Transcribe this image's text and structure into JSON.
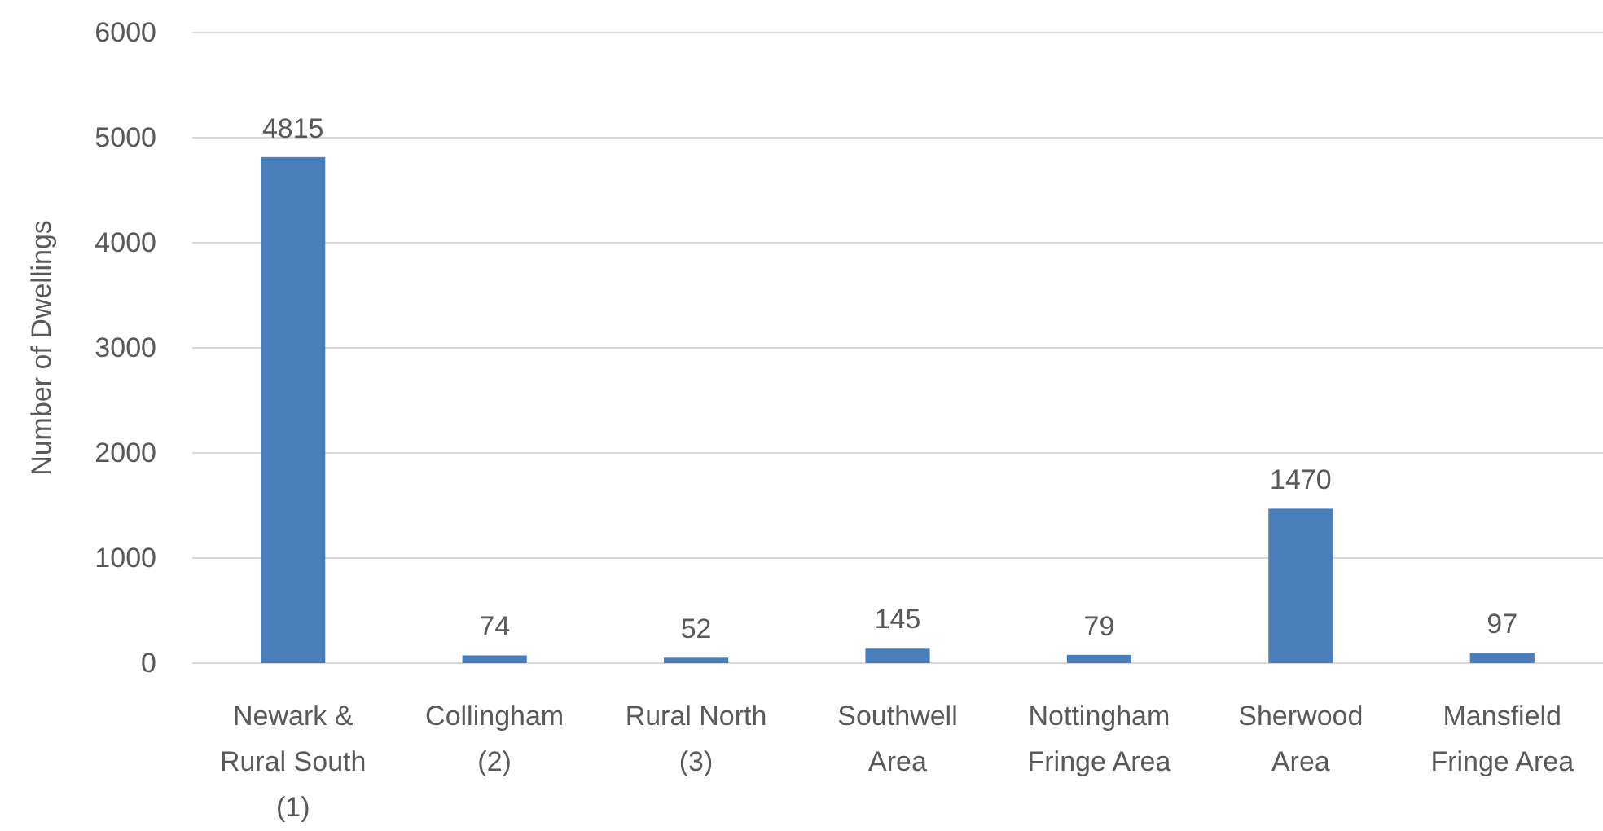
{
  "chart_data": {
    "type": "bar",
    "ylabel": "Number of Dwellings",
    "categories": [
      "Newark & Rural South (1)",
      "Collingham (2)",
      "Rural North (3)",
      "Southwell Area",
      "Nottingham Fringe Area",
      "Sherwood Area",
      "Mansfield Fringe Area"
    ],
    "values": [
      4815,
      74,
      52,
      145,
      79,
      1470,
      97
    ],
    "color": "#4a7ebb",
    "ylim": [
      0,
      6000
    ],
    "yticks": [
      0,
      1000,
      2000,
      3000,
      4000,
      5000,
      6000
    ],
    "grid": "y",
    "data_labels": true
  }
}
